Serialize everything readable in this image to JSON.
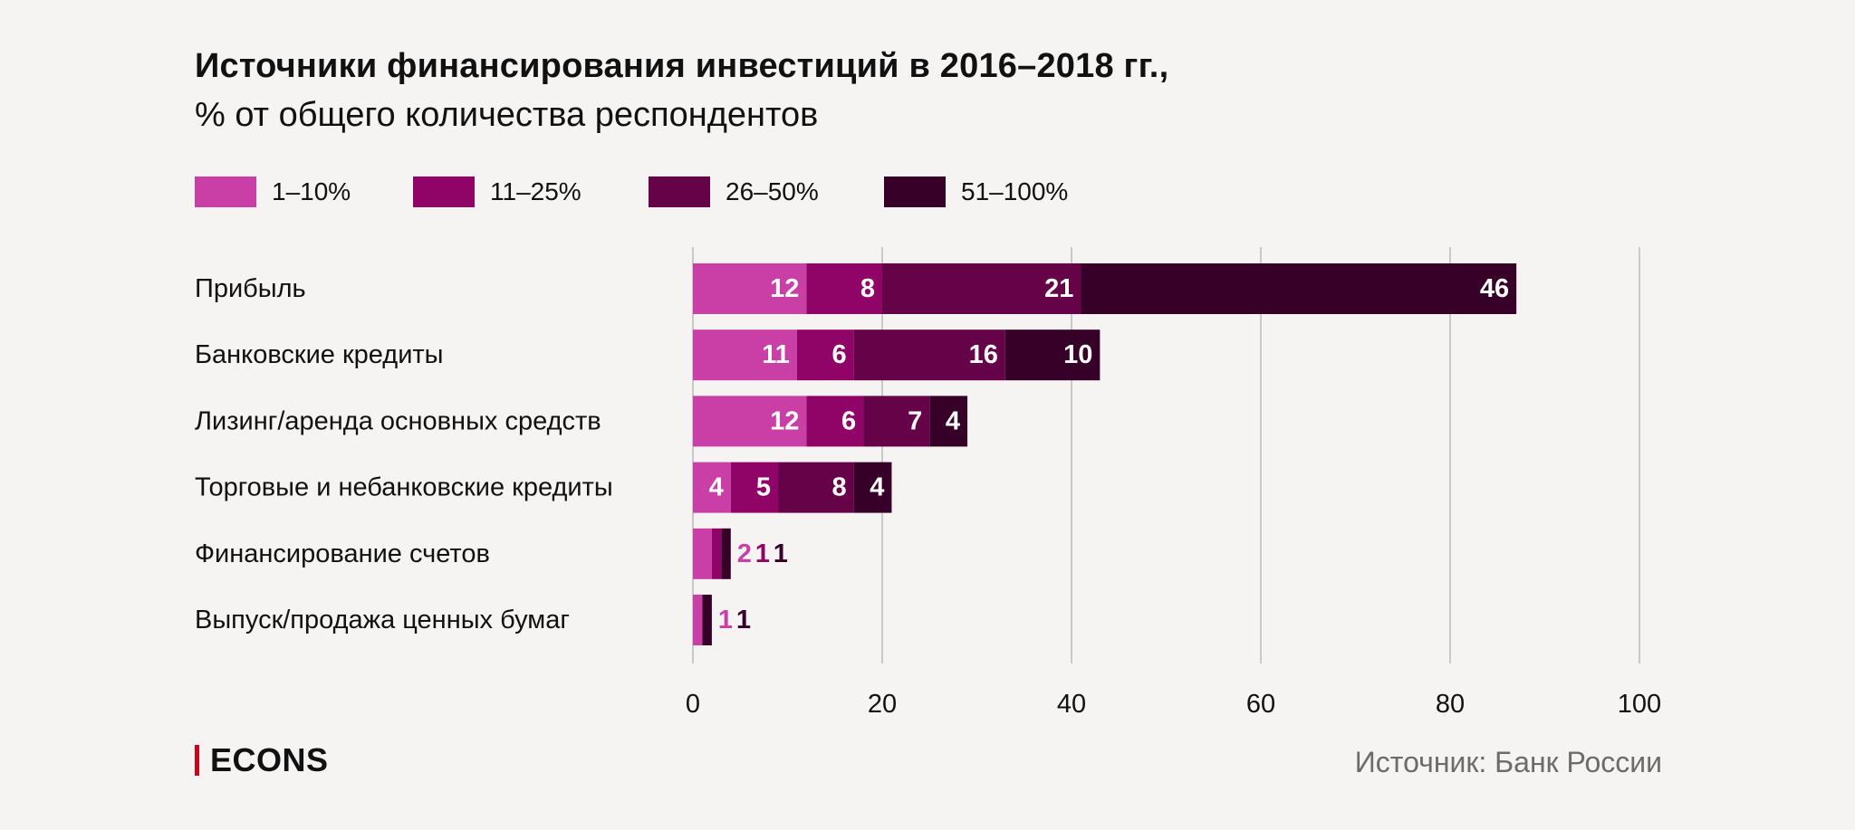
{
  "header": {
    "title": "Источники финансирования инвестиций в 2016–2018 гг.,",
    "subtitle": "% от общего количества респондентов"
  },
  "colors": {
    "series": [
      "#c93fa6",
      "#8f0466",
      "#650248",
      "#360029"
    ],
    "grid": "#c9c9c9",
    "background": "#f5f4f2",
    "logo_accent": "#d0021b"
  },
  "chart_data": {
    "type": "bar",
    "orientation": "horizontal",
    "stacked": true,
    "title": "Источники финансирования инвестиций в 2016–2018 гг.,",
    "subtitle": "% от общего количества респондентов",
    "categories": [
      "Прибыль",
      "Банковские кредиты",
      "Лизинг/аренда основных средств",
      "Торговые и небанковские кредиты",
      "Финансирование счетов",
      "Выпуск/продажа ценных бумаг"
    ],
    "series": [
      {
        "name": "1–10%",
        "values": [
          12,
          11,
          12,
          4,
          2,
          1
        ]
      },
      {
        "name": "11–25%",
        "values": [
          8,
          6,
          6,
          5,
          1,
          0
        ]
      },
      {
        "name": "26–50%",
        "values": [
          21,
          16,
          7,
          8,
          0,
          0
        ]
      },
      {
        "name": "51–100%",
        "values": [
          46,
          10,
          4,
          4,
          1,
          1
        ]
      }
    ],
    "xlim": [
      0,
      100
    ],
    "xticks": [
      0,
      20,
      40,
      60,
      80,
      100
    ],
    "grid": true,
    "legend": "top-left"
  },
  "footer": {
    "logo": "ECONS",
    "source": "Источник: Банк России"
  }
}
